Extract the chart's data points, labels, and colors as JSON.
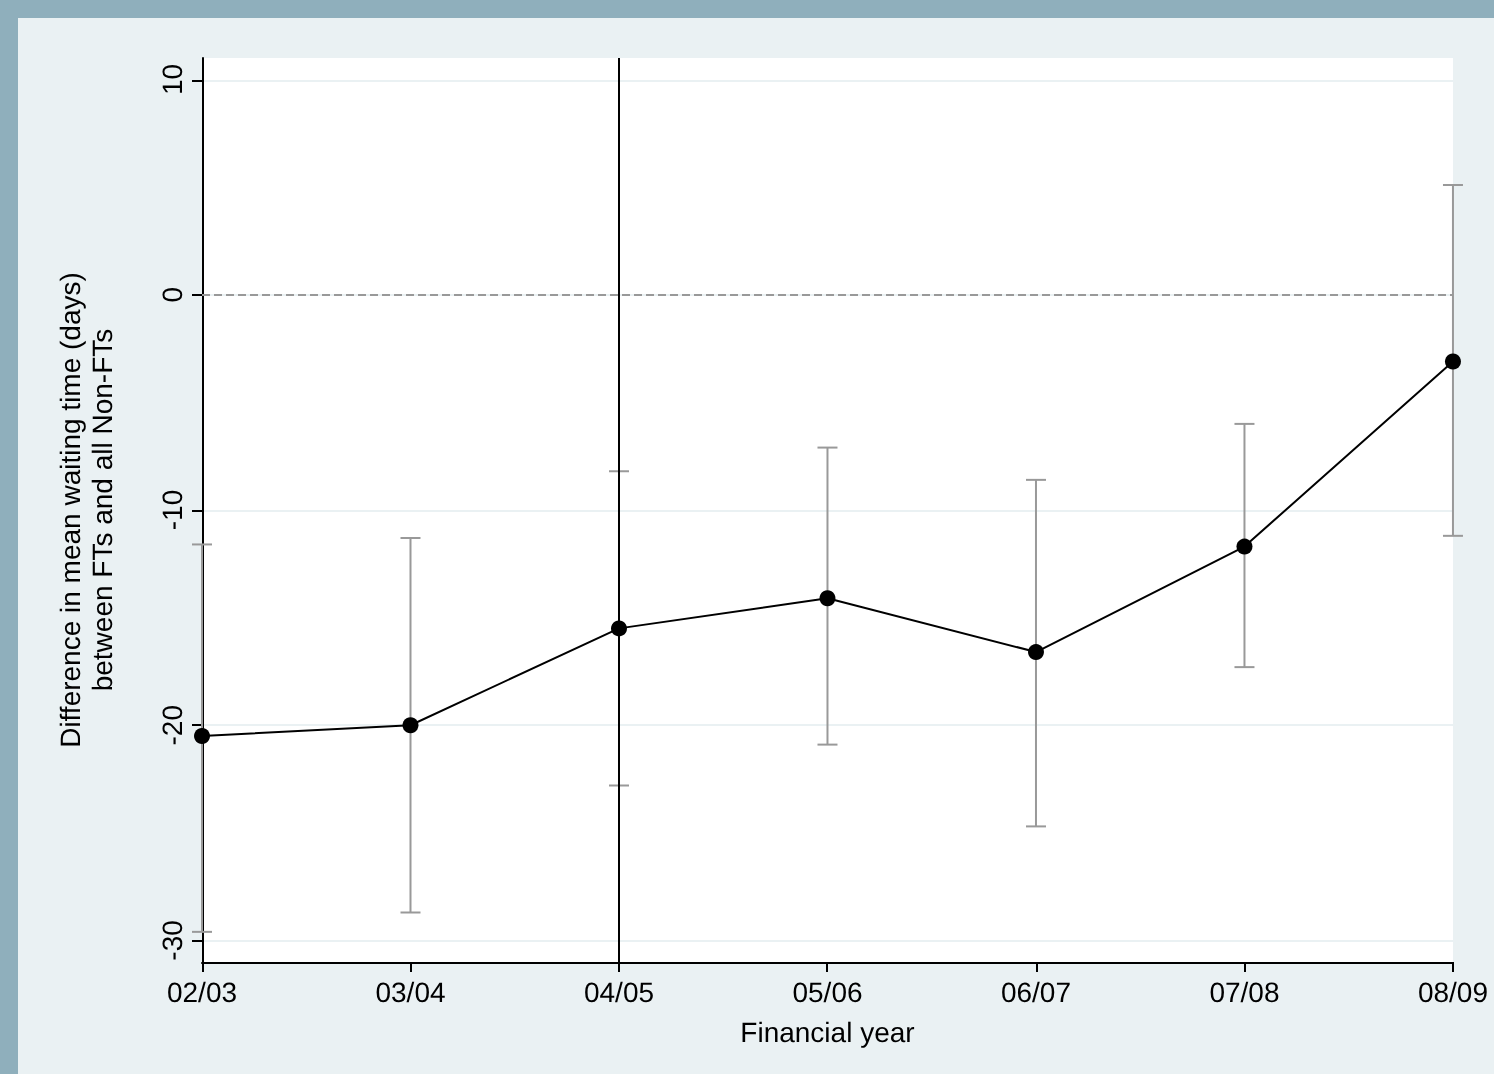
{
  "chart_data": {
    "type": "line",
    "xlabel": "Financial year",
    "ylabel": "Difference in mean waiting time (days)\nbetween FTs and all Non-FTs",
    "categories": [
      "02/03",
      "03/04",
      "04/05",
      "05/06",
      "06/07",
      "07/08",
      "08/09"
    ],
    "series": [
      {
        "color": "#000000",
        "values": [
          -20.5,
          -20.0,
          -15.5,
          -14.1,
          -16.6,
          -11.7,
          -3.1
        ],
        "errors": [
          [
            -29.6,
            -11.6
          ],
          [
            -28.7,
            -11.3
          ],
          [
            -22.8,
            -8.2
          ],
          [
            -20.9,
            -7.1
          ],
          [
            -24.7,
            -8.6
          ],
          [
            -17.3,
            -6.0
          ],
          [
            -11.2,
            5.1
          ]
        ]
      }
    ],
    "ylim": [
      -31,
      11
    ],
    "yticks": [
      -30,
      -20,
      -10,
      0,
      10
    ],
    "grid": "y",
    "marker": "circle",
    "line_style": "solid",
    "ref_lines": [
      {
        "axis": "y",
        "value": 0,
        "color": "#999999",
        "line_style": "dashed"
      },
      {
        "axis": "x",
        "value": "04/05",
        "color": "#000000",
        "line_style": "solid"
      }
    ]
  }
}
